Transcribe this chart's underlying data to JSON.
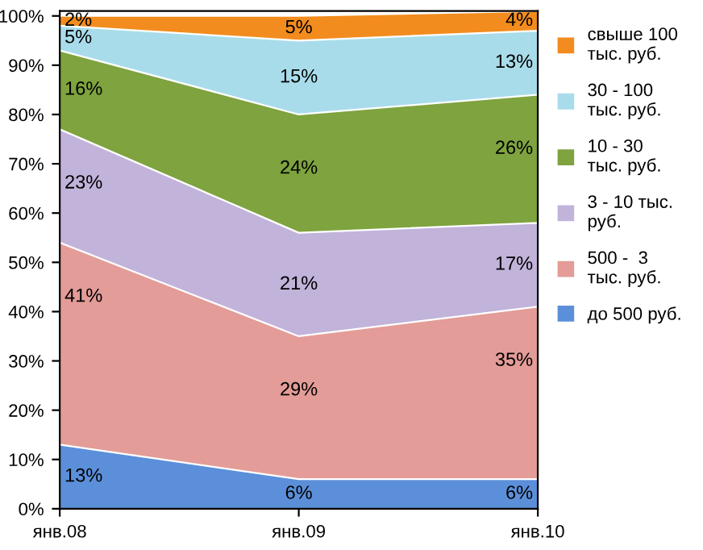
{
  "chart_data": {
    "type": "area",
    "stacked": true,
    "categories": [
      "янв.08",
      "янв.09",
      "янв.10"
    ],
    "series": [
      {
        "name": "до 500 руб.",
        "color": "#5b8fd9",
        "values": [
          13,
          6,
          6
        ],
        "value_labels": [
          "13%",
          "6%",
          "6%"
        ]
      },
      {
        "name": "500 -  3 тыс. руб.",
        "color": "#e39c98",
        "values": [
          41,
          29,
          35
        ],
        "value_labels": [
          "41%",
          "29%",
          "35%"
        ]
      },
      {
        "name": "3 - 10 тыс. руб.",
        "color": "#c2b3da",
        "values": [
          23,
          21,
          17
        ],
        "value_labels": [
          "23%",
          "21%",
          "17%"
        ]
      },
      {
        "name": "10 - 30 тыс. руб.",
        "color": "#7ea33f",
        "values": [
          16,
          24,
          26
        ],
        "value_labels": [
          "16%",
          "24%",
          "26%"
        ]
      },
      {
        "name": "30 - 100 тыс. руб.",
        "color": "#a9dcea",
        "values": [
          5,
          15,
          13
        ],
        "value_labels": [
          "5%",
          "15%",
          "13%"
        ]
      },
      {
        "name": "свыше 100 тыс. руб.",
        "color": "#f28c1e",
        "values": [
          2,
          5,
          4
        ],
        "value_labels": [
          "2%",
          "5%",
          "4%"
        ]
      }
    ],
    "ylim": [
      0,
      101
    ],
    "yticks": [
      {
        "value": 0,
        "label": "0%"
      },
      {
        "value": 10,
        "label": "10%"
      },
      {
        "value": 20,
        "label": "20%"
      },
      {
        "value": 30,
        "label": "30%"
      },
      {
        "value": 40,
        "label": "40%"
      },
      {
        "value": 50,
        "label": "50%"
      },
      {
        "value": 60,
        "label": "60%"
      },
      {
        "value": 70,
        "label": "70%"
      },
      {
        "value": 80,
        "label": "80%"
      },
      {
        "value": 90,
        "label": "90%"
      },
      {
        "value": 100,
        "label": "100%"
      }
    ],
    "legend": "right",
    "grid": false
  }
}
